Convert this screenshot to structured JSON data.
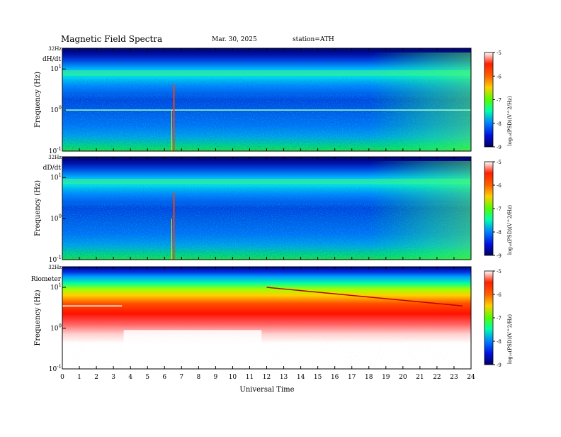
{
  "header": {
    "title": "Magnetic  Field  Spectra",
    "date": "Mar. 30, 2025",
    "station": "station=ATH"
  },
  "chart_data": {
    "type": "heatmap",
    "xlabel": "Universal Time",
    "x_ticks": [
      "0",
      "1",
      "2",
      "3",
      "4",
      "5",
      "6",
      "7",
      "8",
      "9",
      "10",
      "11",
      "12",
      "13",
      "14",
      "15",
      "16",
      "17",
      "18",
      "19",
      "20",
      "21",
      "22",
      "23",
      "24"
    ],
    "xlim": [
      0,
      24
    ],
    "y_scale": "log",
    "ylim_hz": [
      0.1,
      32
    ],
    "colorbar": {
      "label": "log10(PSD)(V^2/Hz)",
      "label_display": "log₁₀(PSD)(V^2/Hz)",
      "range": [
        -9,
        -5
      ],
      "ticks": [
        "-5",
        "-6",
        "-7",
        "-8",
        "-9"
      ],
      "colormap": [
        "#00005a",
        "#0000c8",
        "#0050ff",
        "#00c8ff",
        "#00ff50",
        "#c8ff00",
        "#ffc800",
        "#ff2000",
        "#ffffff"
      ]
    },
    "panels": [
      {
        "label": "dH/dt",
        "ylabel": "Frequency  (Hz)",
        "top_tick": "32Hz",
        "y_ticks": [
          {
            "base": "10",
            "exp": "1",
            "value": 10
          },
          {
            "base": "10",
            "exp": "0",
            "value": 1
          },
          {
            "base": "10",
            "exp": "-1",
            "value": 0.1
          }
        ],
        "features": [
          {
            "type": "horizontal_line",
            "freq_hz": 1.0,
            "from_h": 0,
            "to_h": 24
          },
          {
            "type": "horizontal_band",
            "freq_hz": 8.0,
            "from_h": 0,
            "to_h": 24
          },
          {
            "type": "spike",
            "hour": 6.55
          }
        ]
      },
      {
        "label": "dD/dt",
        "ylabel": "Frequency  (Hz)",
        "top_tick": "32Hz",
        "y_ticks": [
          {
            "base": "10",
            "exp": "1",
            "value": 10
          },
          {
            "base": "10",
            "exp": "0",
            "value": 1
          },
          {
            "base": "10",
            "exp": "-1",
            "value": 0.1
          }
        ],
        "features": [
          {
            "type": "horizontal_band",
            "freq_hz": 8.0,
            "from_h": 0,
            "to_h": 24
          },
          {
            "type": "spike",
            "hour": 6.55
          }
        ]
      },
      {
        "label": "Riometer",
        "ylabel": "Frequency  (Hz)",
        "top_tick": "32Hz",
        "y_ticks": [
          {
            "base": "10",
            "exp": "1",
            "value": 10
          },
          {
            "base": "10",
            "exp": "0",
            "value": 1
          },
          {
            "base": "10",
            "exp": "-1",
            "value": 0.1
          }
        ],
        "features": [
          {
            "type": "horizontal_line",
            "freq_hz": 3.5,
            "from_h": 0,
            "to_h": 3.5
          },
          {
            "type": "sloped_line",
            "from_h": 12,
            "from_hz": 10,
            "to_h": 23.5,
            "to_hz": 3.5
          }
        ]
      }
    ]
  }
}
